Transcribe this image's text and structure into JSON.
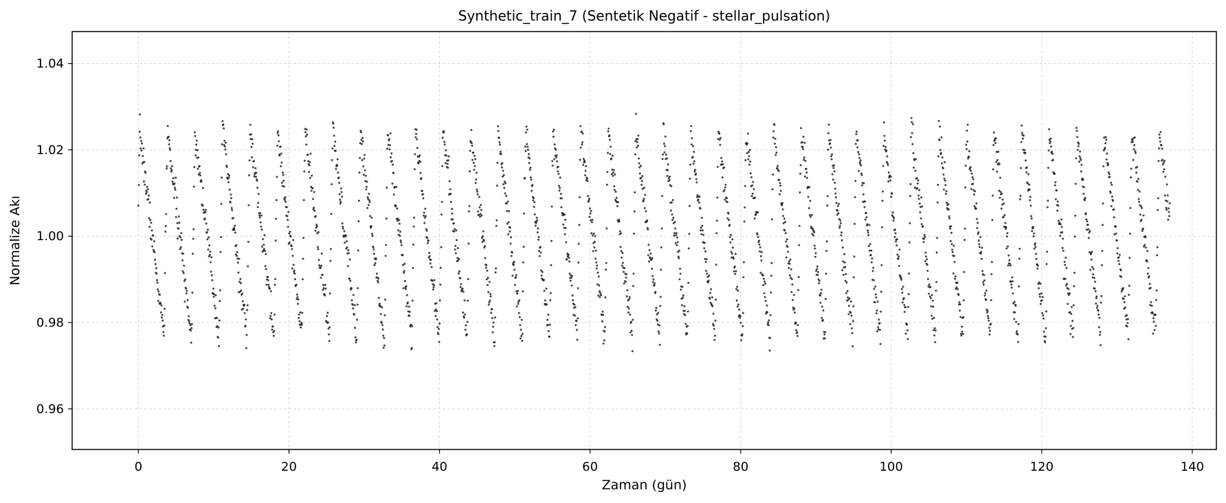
{
  "chart_data": {
    "type": "scatter",
    "title": "Synthetic_train_7 (Sentetik Negatif - stellar_pulsation)",
    "xlabel": "Zaman (gün)",
    "ylabel": "Normalize Akı",
    "xlim": [
      -8.8,
      143.2
    ],
    "ylim": [
      0.9506,
      1.0474
    ],
    "xticks": [
      0,
      20,
      40,
      60,
      80,
      100,
      120,
      140
    ],
    "yticks": [
      0.96,
      0.98,
      1.0,
      1.02,
      1.04
    ],
    "xtick_labels": [
      "0",
      "20",
      "40",
      "60",
      "80",
      "100",
      "120",
      "140"
    ],
    "ytick_labels": [
      "0.96",
      "0.98",
      "1.00",
      "1.02",
      "1.04"
    ],
    "grid": true,
    "marker_color": "#222222",
    "series": [
      {
        "model": "sawtooth pulsation",
        "x_start": 0,
        "x_end": 137,
        "n_points": 2600,
        "period_days": 3.66,
        "phase_offset": 0.07,
        "rise_fraction": 0.12,
        "min_flux": 0.9765,
        "max_flux": 1.0245,
        "noise_sigma": 0.0018
      }
    ]
  }
}
